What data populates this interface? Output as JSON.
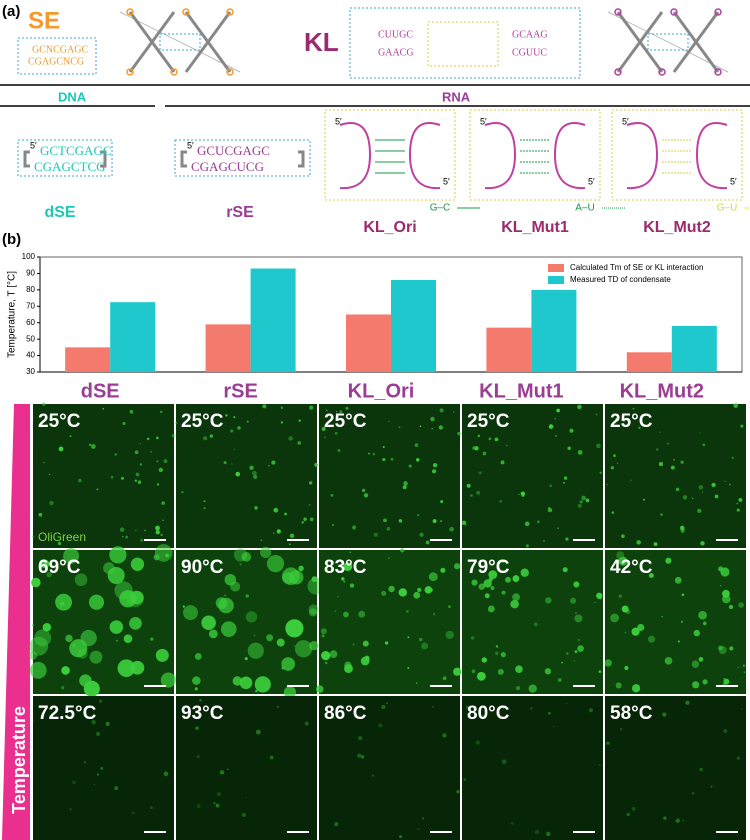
{
  "panel_a": {
    "label": "(a)",
    "se_title": "SE",
    "kl_title": "KL",
    "dna": "DNA",
    "rna": "RNA",
    "prime": "5′",
    "se_seq": [
      "GCNCGAGC",
      "CGAGCNCG"
    ],
    "kl_seq": [
      "CUUGC",
      "GAACG",
      "GCAAG",
      "CGUUC"
    ],
    "constructs": [
      {
        "name": "dSE",
        "seq": [
          "GCTCGAGC",
          "CGAGCTCG"
        ]
      },
      {
        "name": "rSE",
        "seq": [
          "GCUCGAGC",
          "CGAGCUCG"
        ]
      }
    ],
    "hairpins": [
      {
        "name": "KL_Ori",
        "pair": "G–C"
      },
      {
        "name": "KL_Mut1",
        "pair": "A–U"
      },
      {
        "name": "KL_Mut2",
        "pair": "G–U"
      }
    ]
  },
  "panel_b": {
    "label": "(b)",
    "stain": "OliGreen",
    "axis": "Temperature",
    "micrographs": [
      [
        "25°C",
        "25°C",
        "25°C",
        "25°C",
        "25°C"
      ],
      [
        "69°C",
        "90°C",
        "83°C",
        "79°C",
        "42°C"
      ],
      [
        "72.5°C",
        "93°C",
        "86°C",
        "80°C",
        "58°C"
      ]
    ]
  },
  "chart_data": {
    "type": "bar",
    "y_label": "Temperature, T [°C]",
    "categories": [
      "dSE",
      "rSE",
      "KL_Ori",
      "KL_Mut1",
      "KL_Mut2"
    ],
    "category_color": "#9b3d93",
    "series": [
      {
        "name": "Calculated Tm of SE or KL interaction",
        "color": "#f47a6e",
        "values": [
          45,
          59,
          65,
          57,
          42
        ]
      },
      {
        "name": "Measured TD of condensate",
        "color": "#1ec8cc",
        "values": [
          72.5,
          93,
          86,
          80,
          58
        ]
      }
    ],
    "ylim": [
      30,
      100
    ],
    "yticks": [
      30,
      40,
      50,
      60,
      70,
      80,
      90,
      100
    ],
    "legend": "top-right"
  }
}
